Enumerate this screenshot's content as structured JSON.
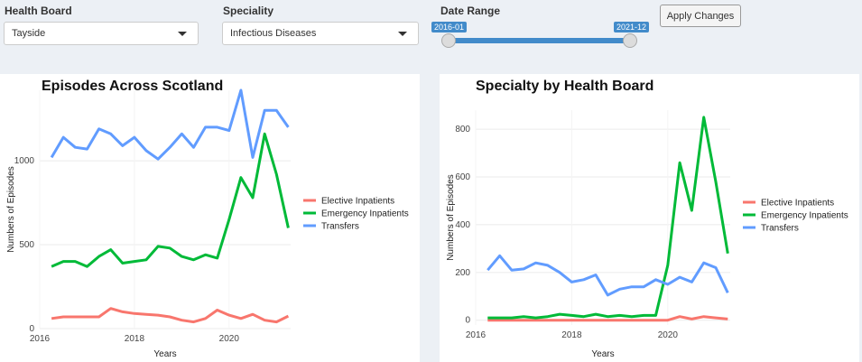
{
  "controls": {
    "health_board": {
      "label": "Health Board",
      "value": "Tayside"
    },
    "speciality": {
      "label": "Speciality",
      "value": "Infectious Diseases"
    },
    "date_range": {
      "label": "Date Range",
      "start": "2016-01",
      "end": "2021-12"
    },
    "apply_label": "Apply Changes",
    "accent_color": "#428bca"
  },
  "chart_data": [
    {
      "type": "line",
      "title": "Episodes Across Scotland",
      "xlabel": "Years",
      "ylabel": "Numbers of Episodes",
      "xlim": [
        2016,
        2021.3
      ],
      "ylim": [
        0,
        1420
      ],
      "xticks": [
        2016,
        2018,
        2020
      ],
      "yticks": [
        0,
        500,
        1000
      ],
      "x": [
        2016.25,
        2016.5,
        2016.75,
        2017.0,
        2017.25,
        2017.5,
        2017.75,
        2018.0,
        2018.25,
        2018.5,
        2018.75,
        2019.0,
        2019.25,
        2019.5,
        2019.75,
        2020.0,
        2020.25,
        2020.5,
        2020.75,
        2021.0,
        2021.25
      ],
      "series": [
        {
          "name": "Elective Inpatients",
          "color": "#f8766d",
          "values": [
            60,
            70,
            70,
            70,
            70,
            120,
            100,
            90,
            85,
            80,
            70,
            50,
            40,
            60,
            110,
            80,
            60,
            85,
            50,
            40,
            75
          ]
        },
        {
          "name": "Emergency Inpatients",
          "color": "#00ba38",
          "values": [
            370,
            400,
            400,
            370,
            430,
            470,
            390,
            400,
            410,
            490,
            480,
            430,
            410,
            440,
            420,
            650,
            900,
            780,
            1160,
            920,
            600
          ]
        },
        {
          "name": "Transfers",
          "color": "#619cff",
          "values": [
            1020,
            1140,
            1080,
            1070,
            1190,
            1160,
            1090,
            1140,
            1060,
            1010,
            1080,
            1160,
            1080,
            1200,
            1200,
            1180,
            1420,
            1020,
            1300,
            1300,
            1200
          ]
        }
      ],
      "legend": "right"
    },
    {
      "type": "line",
      "title": "Specialty by Health Board",
      "xlabel": "Years",
      "ylabel": "Numbers of Episodes",
      "xlim": [
        2016,
        2021.3
      ],
      "ylim": [
        -20,
        880
      ],
      "xticks": [
        2016,
        2018,
        2020
      ],
      "yticks": [
        0,
        200,
        400,
        600,
        800
      ],
      "x": [
        2016.25,
        2016.5,
        2016.75,
        2017.0,
        2017.25,
        2017.5,
        2017.75,
        2018.0,
        2018.25,
        2018.5,
        2018.75,
        2019.0,
        2019.25,
        2019.5,
        2019.75,
        2020.0,
        2020.25,
        2020.5,
        2020.75,
        2021.0,
        2021.25
      ],
      "series": [
        {
          "name": "Elective Inpatients",
          "color": "#f8766d",
          "values": [
            0,
            0,
            0,
            0,
            0,
            0,
            0,
            0,
            0,
            0,
            0,
            0,
            0,
            0,
            0,
            0,
            15,
            5,
            15,
            10,
            5
          ]
        },
        {
          "name": "Emergency Inpatients",
          "color": "#00ba38",
          "values": [
            10,
            10,
            10,
            15,
            10,
            15,
            25,
            20,
            15,
            25,
            15,
            20,
            15,
            20,
            20,
            230,
            660,
            460,
            850,
            580,
            280
          ]
        },
        {
          "name": "Transfers",
          "color": "#619cff",
          "values": [
            210,
            270,
            210,
            215,
            240,
            230,
            200,
            160,
            170,
            190,
            105,
            130,
            140,
            140,
            170,
            150,
            180,
            160,
            240,
            220,
            115
          ]
        }
      ],
      "legend": "right"
    }
  ]
}
